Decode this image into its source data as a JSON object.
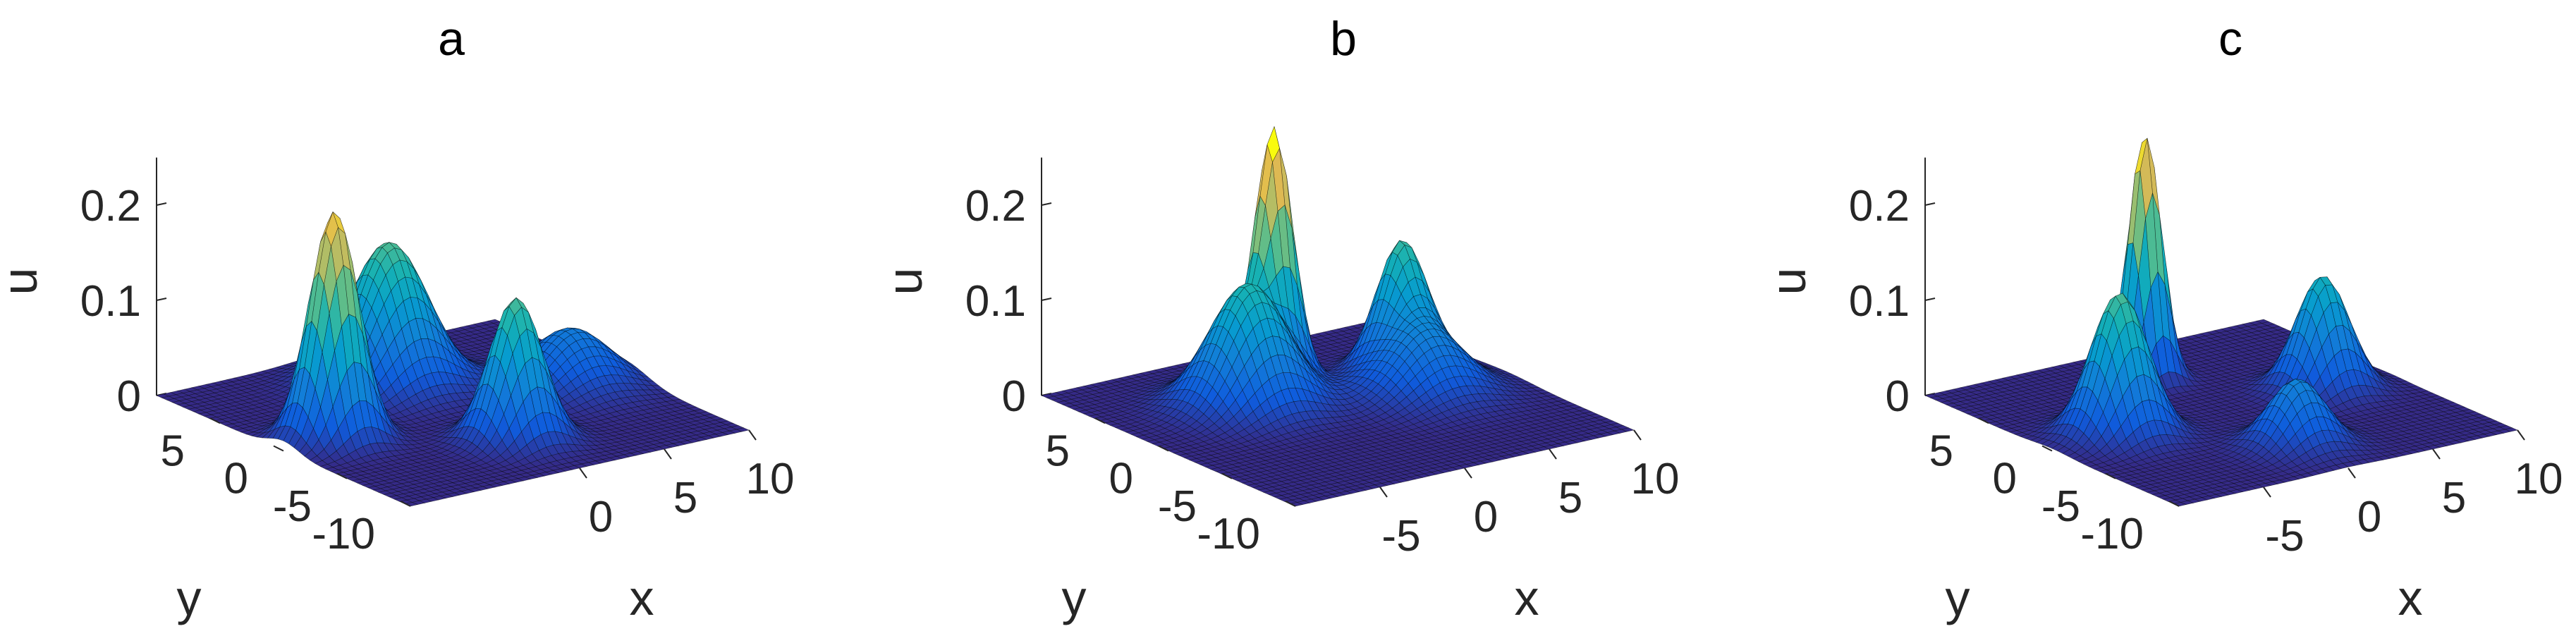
{
  "chart_data": [
    {
      "type": "surface",
      "title": "a",
      "xlabel": "x",
      "ylabel": "y",
      "zlabel": "u",
      "xlim": [
        -10,
        10
      ],
      "ylim": [
        -10,
        10
      ],
      "zlim": [
        0,
        0.25
      ],
      "xticks": [
        "0",
        "5",
        "10"
      ],
      "yticks": [
        "5",
        "0",
        "-5",
        "-10"
      ],
      "zticks": [
        "0",
        "0.1",
        "0.2"
      ],
      "colormap": "parula",
      "peaks": [
        {
          "x": -7,
          "y": 0,
          "amp": 0.24,
          "width": 1.2
        },
        {
          "x": 0,
          "y": 5,
          "amp": 0.15,
          "width": 1.9
        },
        {
          "x": 0,
          "y": -5,
          "amp": 0.15,
          "width": 1.3
        },
        {
          "x": 7,
          "y": 0,
          "amp": 0.06,
          "width": 1.9
        }
      ]
    },
    {
      "type": "surface",
      "title": "b",
      "xlabel": "x",
      "ylabel": "y",
      "zlabel": "u",
      "xlim": [
        -10,
        10
      ],
      "ylim": [
        -10,
        10
      ],
      "zlim": [
        0,
        0.25
      ],
      "xticks": [
        "-5",
        "0",
        "5",
        "10"
      ],
      "yticks": [
        "5",
        "0",
        "-5",
        "-10"
      ],
      "zticks": [
        "0",
        "0.1",
        "0.2"
      ],
      "colormap": "parula",
      "peaks": [
        {
          "x": 0,
          "y": 5,
          "amp": 0.25,
          "width": 0.9
        },
        {
          "x": -3,
          "y": 3,
          "amp": 0.13,
          "width": 1.9
        },
        {
          "x": 6,
          "y": 3,
          "amp": 0.12,
          "width": 1.2
        },
        {
          "x": 5,
          "y": 0,
          "amp": 0.07,
          "width": 2.0
        }
      ]
    },
    {
      "type": "surface",
      "title": "c",
      "xlabel": "x",
      "ylabel": "y",
      "zlabel": "u",
      "xlim": [
        -10,
        10
      ],
      "ylim": [
        -10,
        10
      ],
      "zlim": [
        0,
        0.25
      ],
      "xticks": [
        "-5",
        "0",
        "5",
        "10"
      ],
      "yticks": [
        "5",
        "0",
        "-5",
        "-10"
      ],
      "zticks": [
        "0",
        "0.1",
        "0.2"
      ],
      "colormap": "parula",
      "peaks": [
        {
          "x": -6,
          "y": 0,
          "amp": 0.15,
          "width": 1.4
        },
        {
          "x": 0,
          "y": 6,
          "amp": 0.26,
          "width": 0.8
        },
        {
          "x": 6,
          "y": 0,
          "amp": 0.12,
          "width": 1.3
        },
        {
          "x": 0,
          "y": -6,
          "amp": 0.07,
          "width": 1.4
        }
      ]
    }
  ]
}
